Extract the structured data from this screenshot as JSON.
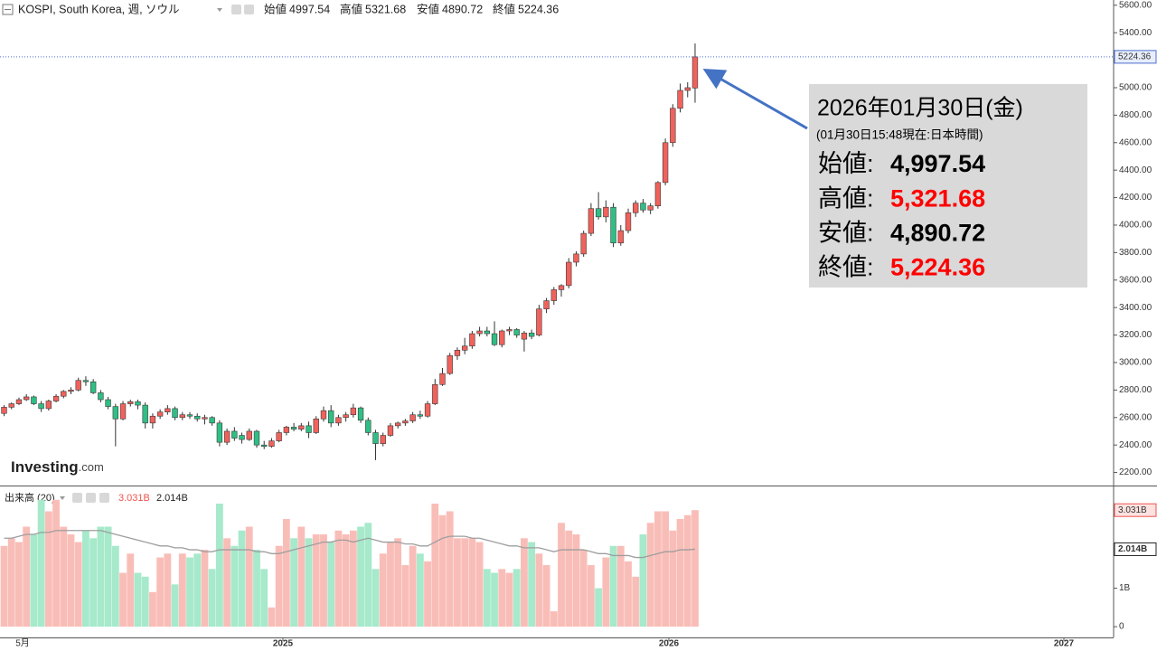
{
  "chart_data": {
    "type": "candlestick",
    "title": "KOSPI, South Korea, 週, ソウル",
    "header_labels": [
      "始値",
      "高値",
      "安値",
      "終値"
    ],
    "up_color": "#f0625c",
    "down_color": "#2fbf84",
    "x": [
      0,
      1,
      2,
      3,
      4,
      5,
      6,
      7,
      8,
      9,
      10,
      11,
      12,
      13,
      14,
      15,
      16,
      17,
      18,
      19,
      20,
      21,
      22,
      23,
      24,
      25,
      26,
      27,
      28,
      29,
      30,
      31,
      32,
      33,
      34,
      35,
      36,
      37,
      38,
      39,
      40,
      41,
      42,
      43,
      44,
      45,
      46,
      47,
      48,
      49,
      50,
      51,
      52,
      53,
      54,
      55,
      56,
      57,
      58,
      59,
      60,
      61,
      62,
      63,
      64,
      65,
      66,
      67,
      68,
      69,
      70,
      71,
      72,
      73,
      74,
      75,
      76,
      77,
      78,
      79,
      80,
      81,
      82,
      83,
      84,
      85,
      86,
      87,
      88,
      89,
      90,
      91,
      92,
      93
    ],
    "xlim": [
      -0.55,
      149.33
    ],
    "xticks": [
      {
        "value": 2.49,
        "label": "5月"
      },
      {
        "value": 37.53,
        "label": "2025"
      },
      {
        "value": 89.47,
        "label": "2026"
      },
      {
        "value": 142.64,
        "label": "2027"
      }
    ],
    "open": [
      2630,
      2675,
      2700,
      2730,
      2750,
      2700,
      2665,
      2720,
      2755,
      2790,
      2800,
      2870,
      2860,
      2780,
      2730,
      2680,
      2590,
      2700,
      2715,
      2690,
      2560,
      2610,
      2640,
      2665,
      2600,
      2620,
      2610,
      2590,
      2600,
      2560,
      2420,
      2500,
      2470,
      2440,
      2500,
      2400,
      2390,
      2430,
      2490,
      2530,
      2515,
      2540,
      2490,
      2590,
      2650,
      2560,
      2600,
      2620,
      2670,
      2580,
      2490,
      2410,
      2470,
      2540,
      2560,
      2575,
      2620,
      2610,
      2700,
      2840,
      2920,
      3050,
      3090,
      3120,
      3210,
      3230,
      3210,
      3130,
      3230,
      3240,
      3170,
      3215,
      3200,
      3390,
      3450,
      3530,
      3560,
      3730,
      3790,
      3940,
      4120,
      4060,
      4130,
      3870,
      3960,
      4090,
      4160,
      4110,
      4140,
      4310,
      4600,
      4850,
      4980,
      4997.54
    ],
    "high": [
      2690,
      2710,
      2745,
      2770,
      2760,
      2720,
      2730,
      2770,
      2800,
      2820,
      2890,
      2900,
      2880,
      2800,
      2750,
      2700,
      2720,
      2730,
      2730,
      2710,
      2630,
      2660,
      2690,
      2680,
      2640,
      2640,
      2630,
      2620,
      2610,
      2580,
      2520,
      2530,
      2490,
      2520,
      2510,
      2430,
      2450,
      2510,
      2540,
      2560,
      2560,
      2570,
      2610,
      2680,
      2690,
      2620,
      2640,
      2700,
      2680,
      2600,
      2510,
      2490,
      2560,
      2570,
      2590,
      2640,
      2650,
      2720,
      2880,
      2960,
      3070,
      3110,
      3180,
      3230,
      3260,
      3260,
      3300,
      3240,
      3260,
      3250,
      3230,
      3240,
      3420,
      3470,
      3550,
      3570,
      3760,
      3810,
      3960,
      4160,
      4240,
      4180,
      4160,
      4000,
      4120,
      4180,
      4190,
      4160,
      4320,
      4630,
      4880,
      5030,
      5040,
      5321.68
    ],
    "low": [
      2610,
      2660,
      2690,
      2720,
      2690,
      2640,
      2650,
      2710,
      2740,
      2770,
      2790,
      2830,
      2770,
      2710,
      2660,
      2390,
      2580,
      2680,
      2660,
      2520,
      2520,
      2590,
      2620,
      2580,
      2580,
      2590,
      2570,
      2550,
      2540,
      2390,
      2400,
      2430,
      2410,
      2430,
      2380,
      2370,
      2380,
      2420,
      2470,
      2500,
      2500,
      2450,
      2480,
      2570,
      2530,
      2540,
      2570,
      2600,
      2560,
      2470,
      2290,
      2390,
      2460,
      2520,
      2540,
      2560,
      2590,
      2600,
      2690,
      2830,
      2910,
      3020,
      3060,
      3100,
      3190,
      3190,
      3120,
      3110,
      3200,
      3180,
      3080,
      3170,
      3190,
      3360,
      3420,
      3480,
      3540,
      3700,
      3770,
      3920,
      4040,
      4020,
      3840,
      3850,
      3940,
      4060,
      4090,
      4080,
      4120,
      4290,
      4570,
      4820,
      4930,
      4890.72
    ],
    "close": [
      2675,
      2700,
      2730,
      2750,
      2700,
      2665,
      2720,
      2755,
      2790,
      2800,
      2870,
      2860,
      2780,
      2730,
      2680,
      2590,
      2700,
      2715,
      2690,
      2560,
      2610,
      2640,
      2665,
      2600,
      2620,
      2610,
      2590,
      2600,
      2560,
      2420,
      2500,
      2450,
      2440,
      2500,
      2400,
      2390,
      2430,
      2490,
      2530,
      2515,
      2540,
      2490,
      2590,
      2650,
      2560,
      2600,
      2620,
      2670,
      2580,
      2490,
      2410,
      2470,
      2540,
      2560,
      2575,
      2620,
      2610,
      2700,
      2840,
      2920,
      3050,
      3090,
      3120,
      3210,
      3230,
      3210,
      3130,
      3230,
      3240,
      3200,
      3215,
      3190,
      3390,
      3450,
      3530,
      3560,
      3730,
      3790,
      3940,
      4120,
      4060,
      4130,
      3870,
      3960,
      4090,
      4160,
      4110,
      4140,
      4310,
      4600,
      4850,
      4980,
      5000,
      5224.36
    ],
    "ylim": [
      2105,
      5638
    ],
    "yticks": [
      {
        "value": 2200,
        "label": "2200.00"
      },
      {
        "value": 2400,
        "label": "2400.00"
      },
      {
        "value": 2600,
        "label": "2600.00"
      },
      {
        "value": 2800,
        "label": "2800.00"
      },
      {
        "value": 3000,
        "label": "3000.00"
      },
      {
        "value": 3200,
        "label": "3200.00"
      },
      {
        "value": 3400,
        "label": "3400.00"
      },
      {
        "value": 3600,
        "label": "3600.00"
      },
      {
        "value": 3800,
        "label": "3800.00"
      },
      {
        "value": 4000,
        "label": "4000.00"
      },
      {
        "value": 4200,
        "label": "4200.00"
      },
      {
        "value": 4400,
        "label": "4400.00"
      },
      {
        "value": 4600,
        "label": "4600.00"
      },
      {
        "value": 4800,
        "label": "4800.00"
      },
      {
        "value": 5000,
        "label": "5000.00"
      },
      {
        "value": 5200,
        "label": "5200.00"
      },
      {
        "value": 5400,
        "label": "5400.00"
      },
      {
        "value": 5600,
        "label": "5600.00"
      }
    ],
    "price_line_color": "#4a6fd0",
    "watermark": [
      "Investing",
      ".com"
    ],
    "volume": {
      "title": "出来高 (20)",
      "up_color": "#f9bdb8",
      "down_color": "#a6e9cb",
      "values": [
        2.1,
        2.3,
        2.2,
        2.6,
        2.4,
        3.3,
        3.0,
        3.3,
        2.6,
        2.4,
        2.2,
        2.5,
        2.3,
        2.6,
        2.6,
        2.1,
        1.4,
        1.9,
        1.4,
        1.3,
        0.9,
        1.8,
        1.9,
        1.1,
        1.9,
        1.8,
        1.9,
        2.0,
        1.5,
        3.2,
        2.3,
        2.1,
        2.5,
        2.6,
        2.0,
        1.5,
        0.5,
        2.1,
        2.8,
        2.3,
        2.6,
        2.3,
        2.4,
        2.4,
        2.2,
        2.5,
        2.4,
        2.5,
        2.6,
        2.7,
        1.5,
        1.9,
        2.2,
        2.3,
        1.6,
        2.1,
        1.9,
        1.7,
        3.2,
        2.9,
        3.0,
        2.3,
        2.3,
        2.3,
        2.2,
        1.5,
        1.4,
        1.5,
        1.4,
        1.5,
        2.3,
        2.2,
        1.9,
        1.6,
        0.4,
        2.7,
        2.5,
        2.4,
        2.0,
        1.6,
        1.0,
        1.8,
        2.1,
        2.1,
        1.7,
        1.3,
        2.4,
        2.7,
        3.0,
        3.0,
        2.5,
        2.8,
        2.9,
        3.031
      ],
      "current_label": "3.031B",
      "ma": {
        "color": "#9e9e9e",
        "values": [
          2.3,
          2.3,
          2.35,
          2.4,
          2.4,
          2.45,
          2.45,
          2.5,
          2.5,
          2.5,
          2.5,
          2.5,
          2.5,
          2.5,
          2.45,
          2.4,
          2.35,
          2.3,
          2.25,
          2.2,
          2.15,
          2.1,
          2.1,
          2.05,
          2.05,
          2.0,
          2.0,
          1.95,
          1.95,
          2.0,
          2.0,
          2.0,
          2.0,
          2.0,
          1.95,
          1.95,
          1.9,
          1.9,
          1.95,
          2.0,
          2.05,
          2.1,
          2.15,
          2.2,
          2.2,
          2.25,
          2.25,
          2.2,
          2.25,
          2.3,
          2.25,
          2.2,
          2.2,
          2.2,
          2.15,
          2.15,
          2.1,
          2.1,
          2.2,
          2.3,
          2.35,
          2.35,
          2.35,
          2.3,
          2.3,
          2.25,
          2.2,
          2.15,
          2.1,
          2.1,
          2.05,
          2.05,
          2.05,
          2.0,
          1.95,
          2.0,
          2.0,
          2.0,
          2.0,
          1.95,
          1.9,
          1.9,
          1.85,
          1.85,
          1.85,
          1.8,
          1.8,
          1.85,
          1.9,
          1.95,
          1.95,
          2.0,
          2.0,
          2.014
        ],
        "current_label": "2.014B"
      },
      "ylim": [
        -0.28,
        3.6
      ],
      "yticks": [
        0,
        {
          "value": 1,
          "label": "1B"
        }
      ]
    },
    "annotation": {
      "date": "2026年01月30日(金)",
      "note": "(01月30日15:48現在:日本時間)",
      "rows": [
        {
          "label": "始値:",
          "value": "4,997.54",
          "color": "#000000"
        },
        {
          "label": "高値:",
          "value": "5,321.68",
          "color": "#ff0000"
        },
        {
          "label": "安値:",
          "value": "4,890.72",
          "color": "#000000"
        },
        {
          "label": "終値:",
          "value": "5,224.36",
          "color": "#ff0000"
        }
      ]
    }
  }
}
